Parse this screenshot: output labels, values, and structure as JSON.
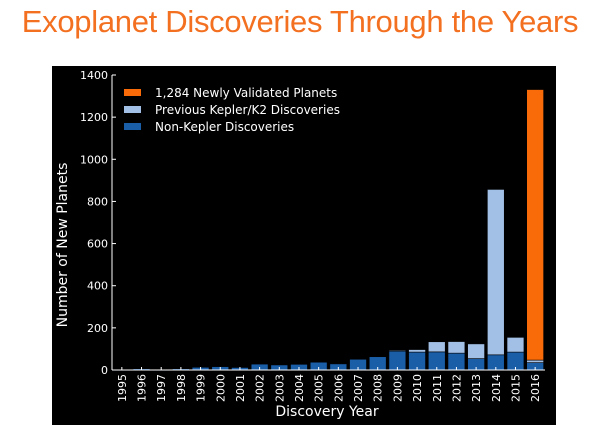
{
  "page": {
    "title": "Exoplanet Discoveries Through the Years",
    "title_color": "#f37021"
  },
  "colors": {
    "background": "#000000",
    "newly_validated": "#f96a08",
    "previous_kepler": "#a2bfe6",
    "non_kepler": "#1a5ea8",
    "text": "#ffffff"
  },
  "chart_data": {
    "type": "bar",
    "stacked": true,
    "xlabel": "Discovery Year",
    "ylabel": "Number of New Planets",
    "ylim": [
      0,
      1400
    ],
    "yticks": [
      0,
      200,
      400,
      600,
      800,
      1000,
      1200,
      1400
    ],
    "grid": false,
    "legend_position": "top-left",
    "categories": [
      "1995",
      "1996",
      "1997",
      "1998",
      "1999",
      "2000",
      "2001",
      "2002",
      "2003",
      "2004",
      "2005",
      "2006",
      "2007",
      "2008",
      "2009",
      "2010",
      "2011",
      "2012",
      "2013",
      "2014",
      "2015",
      "2016"
    ],
    "series": [
      {
        "name": "Non-Kepler Discoveries",
        "color": "#1a5ea8",
        "values": [
          1,
          6,
          1,
          6,
          13,
          16,
          12,
          28,
          24,
          27,
          37,
          29,
          51,
          63,
          90,
          85,
          86,
          80,
          54,
          72,
          85,
          35
        ]
      },
      {
        "name": "Previous Kepler/K2 Discoveries",
        "color": "#a2bfe6",
        "values": [
          0,
          0,
          0,
          0,
          0,
          0,
          0,
          0,
          0,
          0,
          0,
          0,
          0,
          0,
          4,
          12,
          48,
          55,
          70,
          785,
          70,
          12
        ]
      },
      {
        "name": "1,284 Newly Validated Planets",
        "color": "#f96a08",
        "values": [
          0,
          0,
          0,
          0,
          0,
          0,
          0,
          0,
          0,
          0,
          0,
          0,
          0,
          0,
          0,
          0,
          0,
          0,
          0,
          0,
          0,
          1284
        ]
      }
    ],
    "legend_order": [
      "1,284 Newly Validated Planets",
      "Previous Kepler/K2 Discoveries",
      "Non-Kepler Discoveries"
    ]
  }
}
